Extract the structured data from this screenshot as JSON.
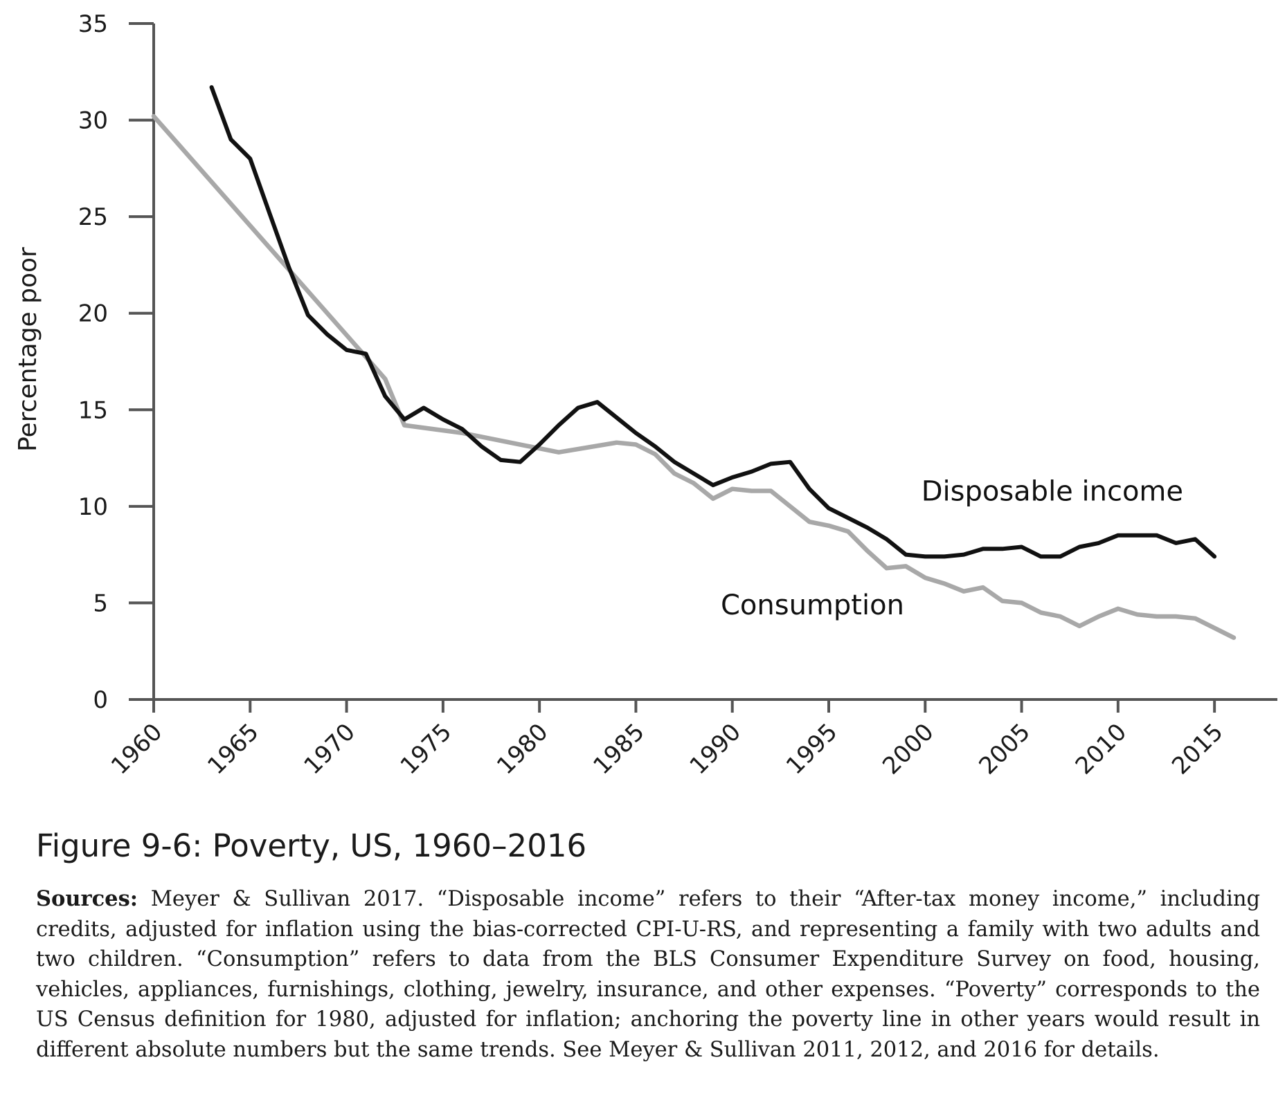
{
  "chart_data": {
    "type": "line",
    "title": "",
    "xlabel": "",
    "ylabel": "Percentage poor",
    "xlim": [
      1960,
      2016
    ],
    "ylim": [
      0,
      35
    ],
    "x_ticks": [
      1960,
      1965,
      1970,
      1975,
      1980,
      1985,
      1990,
      1995,
      2000,
      2005,
      2010,
      2015
    ],
    "x_tick_labels": [
      "1960",
      "1965",
      "1970",
      "1975",
      "1980",
      "1985",
      "1990",
      "1995",
      "2000",
      "2005",
      "2010",
      "2015"
    ],
    "y_ticks": [
      0,
      5,
      10,
      15,
      20,
      25,
      30,
      35
    ],
    "y_tick_labels": [
      "0",
      "5",
      "10",
      "15",
      "20",
      "25",
      "30",
      "35"
    ],
    "grid": false,
    "legend": "inline labels",
    "series": [
      {
        "name": "Disposable income",
        "color": "#111111",
        "x": [
          1963,
          1964,
          1965,
          1966,
          1967,
          1968,
          1969,
          1970,
          1971,
          1972,
          1973,
          1974,
          1975,
          1976,
          1977,
          1978,
          1979,
          1980,
          1981,
          1982,
          1983,
          1984,
          1985,
          1986,
          1987,
          1988,
          1989,
          1990,
          1991,
          1992,
          1993,
          1994,
          1995,
          1996,
          1997,
          1998,
          1999,
          2000,
          2001,
          2002,
          2003,
          2004,
          2005,
          2006,
          2007,
          2008,
          2009,
          2010,
          2011,
          2012,
          2013,
          2014,
          2015
        ],
        "y": [
          31.7,
          29.0,
          28.0,
          25.2,
          22.4,
          19.9,
          18.9,
          18.1,
          17.9,
          15.7,
          14.5,
          15.1,
          14.5,
          14.0,
          13.1,
          12.4,
          12.3,
          13.2,
          14.2,
          15.1,
          15.4,
          14.6,
          13.8,
          13.1,
          12.3,
          11.7,
          11.1,
          11.5,
          11.8,
          12.2,
          12.3,
          10.9,
          9.9,
          9.4,
          8.9,
          8.3,
          7.5,
          7.4,
          7.4,
          7.5,
          7.8,
          7.8,
          7.9,
          7.4,
          7.4,
          7.9,
          8.1,
          8.5,
          8.5,
          8.5,
          8.1,
          8.3,
          7.4
        ]
      },
      {
        "name": "Consumption",
        "color": "#a8a8a8",
        "x": [
          1960,
          1972,
          1973,
          1976,
          1981,
          1984,
          1985,
          1986,
          1987,
          1988,
          1989,
          1990,
          1991,
          1992,
          1993,
          1994,
          1995,
          1996,
          1997,
          1998,
          1999,
          2000,
          2001,
          2002,
          2003,
          2004,
          2005,
          2006,
          2007,
          2008,
          2009,
          2010,
          2011,
          2012,
          2013,
          2014,
          2015,
          2016
        ],
        "y": [
          30.2,
          16.6,
          14.2,
          13.8,
          12.8,
          13.3,
          13.2,
          12.7,
          11.7,
          11.2,
          10.4,
          10.9,
          10.8,
          10.8,
          10.0,
          9.2,
          9.0,
          8.7,
          7.7,
          6.8,
          6.9,
          6.3,
          6.0,
          5.6,
          5.8,
          5.1,
          5.0,
          4.5,
          4.3,
          3.8,
          4.3,
          4.7,
          4.4,
          4.3,
          4.3,
          4.2,
          3.7,
          3.2
        ]
      }
    ],
    "annotations": [
      {
        "text": "Disposable income",
        "x": 1999.8,
        "y": 10.3,
        "series": "Disposable income"
      },
      {
        "text": "Consumption",
        "x": 1989.4,
        "y": 4.4,
        "series": "Consumption"
      }
    ]
  },
  "caption": {
    "title": "Figure 9-6: Poverty, US, 1960–2016",
    "sources_label": "Sources:",
    "sources_text": "Meyer & Sullivan 2017. “Disposable income” refers to their “After-tax money income,” including credits, adjusted for inflation using the bias-corrected CPI-U-RS, and representing a family with two adults and two children. “Consumption” refers to data from the BLS Consumer Expenditure Survey on food, housing, vehicles, appliances, furnishings, clothing, jewelry, insurance, and other expenses. “Poverty” corresponds to the US Census definition for 1980, adjusted for inflation; anchoring the poverty line in other years would result in different absolute numbers but the same trends. See Meyer & Sullivan 2011, 2012, and 2016 for details."
  }
}
